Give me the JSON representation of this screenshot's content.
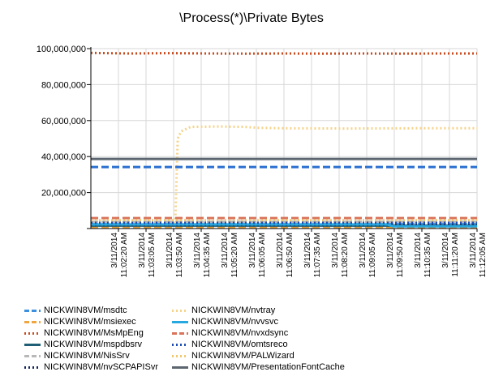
{
  "chart_data": {
    "type": "line",
    "title": "\\Process(*)\\Private Bytes",
    "xlabel": "",
    "ylabel": "",
    "ylim": [
      0,
      100000000
    ],
    "y_ticks": [
      "100,000,000",
      "80,000,000",
      "60,000,000",
      "40,000,000",
      "20,000,000",
      ""
    ],
    "y_tick_values": [
      100000000,
      80000000,
      60000000,
      40000000,
      20000000,
      0
    ],
    "x_ticks": [
      {
        "date": "3/11/2014",
        "time": "11:02:20 AM"
      },
      {
        "date": "3/11/2014",
        "time": "11:03:05 AM"
      },
      {
        "date": "3/11/2014",
        "time": "11:03:50 AM"
      },
      {
        "date": "3/11/2014",
        "time": "11:04:35 AM"
      },
      {
        "date": "3/11/2014",
        "time": "11:05:20 AM"
      },
      {
        "date": "3/11/2014",
        "time": "11:06:05 AM"
      },
      {
        "date": "3/11/2014",
        "time": "11:06:50 AM"
      },
      {
        "date": "3/11/2014",
        "time": "11:07:35 AM"
      },
      {
        "date": "3/11/2014",
        "time": "11:08:20 AM"
      },
      {
        "date": "3/11/2014",
        "time": "11:09:05 AM"
      },
      {
        "date": "3/11/2014",
        "time": "11:09:50 AM"
      },
      {
        "date": "3/11/2014",
        "time": "11:10:35 AM"
      },
      {
        "date": "3/11/2014",
        "time": "11:11:20 AM"
      },
      {
        "date": "3/11/2014",
        "time": "11:12:05 AM"
      }
    ],
    "x_range_seconds": [
      0,
      600
    ],
    "grid": true,
    "legend_placement": "bottom",
    "series": [
      {
        "name": "NICKWIN8VM/msdtc",
        "color": "#3d8fe0",
        "dash": "dash",
        "points": [
          [
            0,
            2600000
          ],
          [
            600,
            2600000
          ]
        ]
      },
      {
        "name": "NICKWIN8VM/msiexec",
        "color": "#f0a640",
        "dash": "dash",
        "points": [
          [
            0,
            800000
          ],
          [
            600,
            800000
          ]
        ]
      },
      {
        "name": "NICKWIN8VM/MsMpEng",
        "color": "#c84a1e",
        "dash": "dot",
        "points": [
          [
            0,
            97600000
          ],
          [
            60,
            97300000
          ],
          [
            120,
            97500000
          ],
          [
            180,
            97300000
          ],
          [
            240,
            97200000
          ],
          [
            300,
            97300000
          ],
          [
            360,
            97200000
          ],
          [
            420,
            97300000
          ],
          [
            480,
            97200000
          ],
          [
            540,
            97300000
          ],
          [
            600,
            97300000
          ]
        ]
      },
      {
        "name": "NICKWIN8VM/mspdbsrv",
        "color": "#1f5f75",
        "dash": "solid",
        "points": [
          [
            0,
            1600000
          ],
          [
            600,
            1600000
          ]
        ]
      },
      {
        "name": "NICKWIN8VM/NisSrv",
        "color": "#b8b8b8",
        "dash": "dash",
        "points": [
          [
            0,
            3800000
          ],
          [
            600,
            3800000
          ]
        ]
      },
      {
        "name": "NICKWIN8VM/nvSCPAPISvr",
        "color": "#10245a",
        "dash": "dot",
        "points": [
          [
            0,
            2000000
          ],
          [
            600,
            2000000
          ]
        ]
      },
      {
        "name": "NICKWIN8VM/nvtray",
        "color": "#f5d38a",
        "dash": "dot",
        "points": [
          [
            0,
            2400000
          ],
          [
            130,
            2400000
          ],
          [
            131,
            2400000
          ],
          [
            135,
            50000000
          ],
          [
            140,
            54000000
          ],
          [
            155,
            56500000
          ],
          [
            200,
            56700000
          ],
          [
            240,
            56500000
          ],
          [
            260,
            56000000
          ],
          [
            300,
            55700000
          ],
          [
            400,
            55600000
          ],
          [
            500,
            55700000
          ],
          [
            600,
            55700000
          ]
        ]
      },
      {
        "name": "NICKWIN8VM/nvvsvc",
        "color": "#26a9e0",
        "dash": "solid",
        "points": [
          [
            0,
            2300000
          ],
          [
            460,
            2300000
          ],
          [
            470,
            1200000
          ],
          [
            600,
            1200000
          ]
        ]
      },
      {
        "name": "NICKWIN8VM/nvxdsync",
        "color": "#d9735a",
        "dash": "dash",
        "points": [
          [
            0,
            5800000
          ],
          [
            600,
            5800000
          ]
        ]
      },
      {
        "name": "NICKWIN8VM/omtsreco",
        "color": "#1f4fb5",
        "dash": "dot",
        "points": [
          [
            0,
            3200000
          ],
          [
            600,
            3200000
          ]
        ]
      },
      {
        "name": "NICKWIN8VM/PALWizard",
        "color": "#f0c870",
        "dash": "dot",
        "points": [
          [
            0,
            4600000
          ],
          [
            600,
            4600000
          ]
        ]
      },
      {
        "name": "NICKWIN8VM/PresentationFontCache",
        "color": "#5c6670",
        "dash": "solid",
        "points": [
          [
            0,
            38700000
          ],
          [
            600,
            38700000
          ]
        ]
      },
      {
        "name": "NICKWIN8VM/msdtc",
        "color": "#2a6fd0",
        "dash": "dash",
        "legend": false,
        "points": [
          [
            0,
            34200000
          ],
          [
            600,
            34200000
          ]
        ]
      }
    ]
  }
}
